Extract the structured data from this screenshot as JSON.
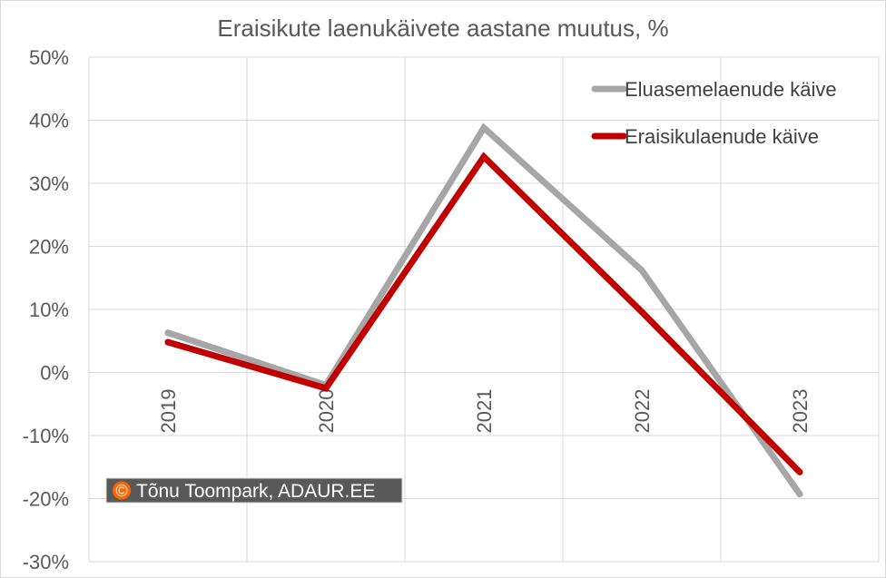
{
  "chart_data": {
    "type": "line",
    "title": "Eraisikute laenukäivete aastane muutus, %",
    "xlabel": "",
    "ylabel": "",
    "categories": [
      "2019",
      "2020",
      "2021",
      "2022",
      "2023"
    ],
    "ylim": [
      -30,
      50
    ],
    "yticks": [
      -30,
      -20,
      -10,
      0,
      10,
      20,
      30,
      40,
      50
    ],
    "ytick_labels": [
      "-30%",
      "-20%",
      "-10%",
      "0%",
      "10%",
      "20%",
      "30%",
      "40%",
      "50%"
    ],
    "grid": true,
    "legend_position": "top-right",
    "series": [
      {
        "name": "Eluasemelaenude käive",
        "color": "#a6a6a6",
        "values": [
          6.3,
          -2.0,
          38.8,
          16.2,
          -19.3
        ]
      },
      {
        "name": "Eraisikulaenude käive",
        "color": "#c00000",
        "values": [
          4.8,
          -2.5,
          34.2,
          9.6,
          -15.8
        ]
      }
    ]
  },
  "watermark": {
    "symbol": "©",
    "text": "Tõnu Toompark, ADAUR.EE",
    "symbol_color": "#ff6600",
    "background": "#595959"
  }
}
